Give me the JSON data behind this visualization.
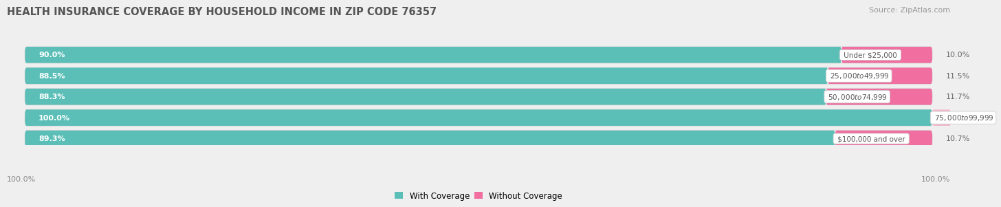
{
  "title": "HEALTH INSURANCE COVERAGE BY HOUSEHOLD INCOME IN ZIP CODE 76357",
  "source": "Source: ZipAtlas.com",
  "categories": [
    "Under $25,000",
    "$25,000 to $49,999",
    "$50,000 to $74,999",
    "$75,000 to $99,999",
    "$100,000 and over"
  ],
  "with_coverage": [
    90.0,
    88.5,
    88.3,
    100.0,
    89.3
  ],
  "without_coverage": [
    10.0,
    11.5,
    11.7,
    0.0,
    10.7
  ],
  "coverage_color": "#5BBFB8",
  "no_coverage_color": "#F06EA0",
  "no_coverage_color_light": "#F2B8CC",
  "background_color": "#efefef",
  "bar_bg_color": "#ffffff",
  "title_fontsize": 10.5,
  "source_fontsize": 8,
  "label_fontsize": 8,
  "legend_fontsize": 8.5,
  "axis_label_fontsize": 8
}
